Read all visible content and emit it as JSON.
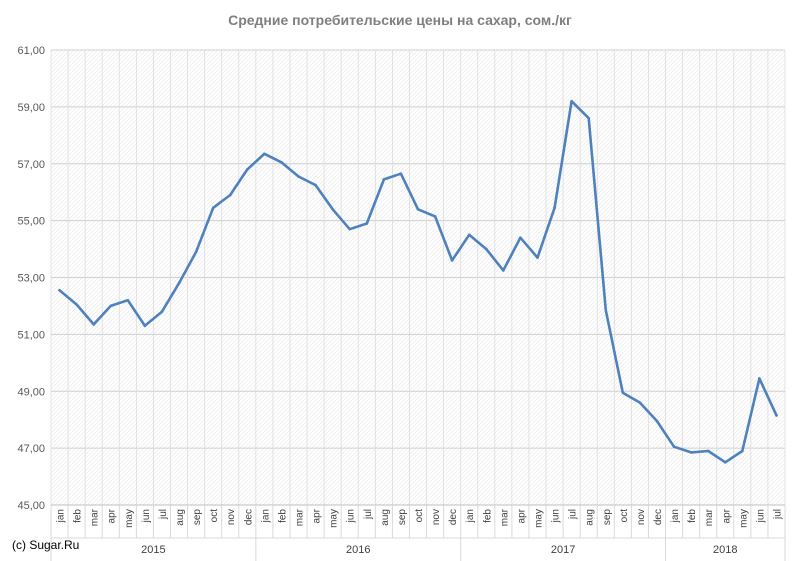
{
  "chart_data": {
    "type": "line",
    "title": "Средние потребительские цены на сахар, сом./кг",
    "xlabel": "",
    "ylabel": "",
    "ylim": [
      45,
      61
    ],
    "yticks": [
      "45,00",
      "47,00",
      "49,00",
      "51,00",
      "53,00",
      "55,00",
      "57,00",
      "59,00",
      "61,00"
    ],
    "grid": true,
    "legend": "none",
    "categories": [
      "jan",
      "feb",
      "mar",
      "apr",
      "may",
      "jun",
      "jul",
      "aug",
      "sep",
      "oct",
      "nov",
      "dec",
      "jan",
      "feb",
      "mar",
      "apr",
      "may",
      "jun",
      "jul",
      "aug",
      "sep",
      "oct",
      "nov",
      "dec",
      "jan",
      "feb",
      "mar",
      "apr",
      "may",
      "jun",
      "jul",
      "aug",
      "sep",
      "oct",
      "nov",
      "dec",
      "jan",
      "feb",
      "mar",
      "apr",
      "may",
      "jun",
      "jul"
    ],
    "years": [
      {
        "label": "2015",
        "count": 12
      },
      {
        "label": "2016",
        "count": 12
      },
      {
        "label": "2017",
        "count": 12
      },
      {
        "label": "2018",
        "count": 7
      }
    ],
    "series": [
      {
        "color": "#4f81bd",
        "values": [
          52.55,
          52.05,
          51.35,
          52.0,
          52.2,
          51.3,
          51.8,
          52.8,
          53.9,
          55.45,
          55.9,
          56.8,
          57.35,
          57.05,
          56.55,
          56.25,
          55.4,
          54.7,
          54.9,
          56.45,
          56.65,
          55.4,
          55.15,
          53.6,
          54.5,
          54.0,
          53.25,
          54.4,
          53.7,
          55.45,
          59.2,
          58.6,
          51.85,
          48.95,
          48.6,
          47.95,
          47.05,
          46.85,
          46.9,
          46.5,
          46.9,
          49.45,
          48.15
        ]
      }
    ]
  },
  "footer": {
    "copyright": "(c) Sugar.Ru"
  }
}
